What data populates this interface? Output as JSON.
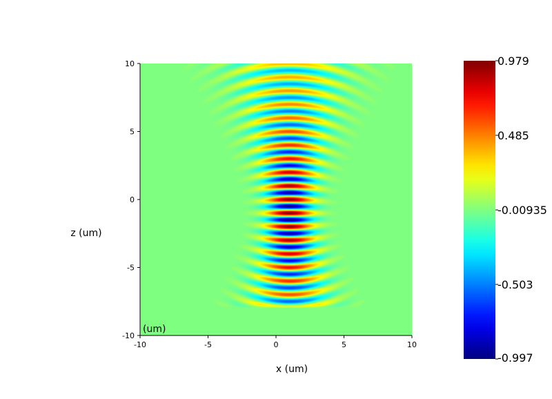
{
  "chart_data": {
    "type": "heatmap",
    "title": "",
    "xlabel": "x (um)",
    "ylabel": "z (um)",
    "corner_label": "(um)",
    "xlim": [
      -10,
      10
    ],
    "ylim": [
      -10,
      10
    ],
    "xticks": [
      -10,
      -5,
      0,
      5,
      10
    ],
    "yticks": [
      10,
      5,
      0,
      -5,
      -10
    ],
    "colorscale": "jet",
    "colorbar": {
      "min": -0.997,
      "max": 0.979,
      "tick_labels": [
        "0.979",
        "0.485",
        "-0.00935",
        "-0.503",
        "-0.997"
      ],
      "tick_values": [
        0.979,
        0.485,
        -0.00935,
        -0.503,
        -0.997
      ]
    },
    "field": {
      "description_free": false,
      "beam_center_x": 1.0,
      "focus_z": -1.0,
      "z_start": -8.0,
      "z_end": 10.0,
      "wavelength": 1.0,
      "waist": 1.6,
      "rayleigh_range": 4.5,
      "background_value": -0.00935
    }
  }
}
